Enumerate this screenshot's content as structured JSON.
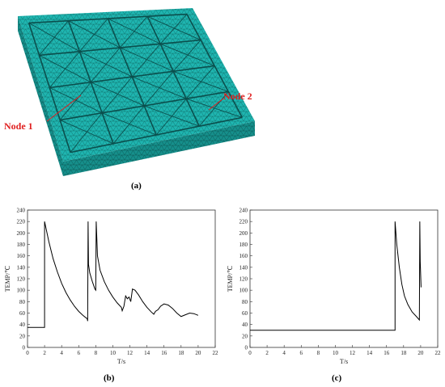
{
  "figure_a": {
    "caption": "(a)",
    "node1_label": "Node 1",
    "node2_label": "Node 2",
    "mesh_color": "#1fb5b0",
    "annotation_color": "#e02020"
  },
  "caption_b": "(b)",
  "caption_c": "(c)",
  "chart_data": [
    {
      "type": "line",
      "title": "",
      "xlabel": "T/s",
      "ylabel": "TEMP/℃",
      "xlim": [
        0,
        22
      ],
      "ylim": [
        0,
        240
      ],
      "xticks": [
        0,
        2,
        4,
        6,
        8,
        10,
        12,
        14,
        16,
        18,
        20,
        22
      ],
      "yticks": [
        0,
        20,
        40,
        60,
        80,
        100,
        120,
        140,
        160,
        180,
        200,
        220,
        240
      ],
      "grid": false,
      "series": [
        {
          "color": "#000000",
          "x": [
            0,
            2,
            2,
            2.5,
            3,
            3.5,
            4,
            4.5,
            5,
            5.5,
            6,
            6.5,
            7,
            7.05,
            7.1,
            7.15,
            7.3,
            7.6,
            7.9,
            8.0,
            8.05,
            8.2,
            8.5,
            9,
            9.5,
            10,
            10.5,
            11,
            11.1,
            11.3,
            11.5,
            11.7,
            11.9,
            12.1,
            12.3,
            12.6,
            13,
            13.5,
            14,
            14.5,
            14.8,
            15,
            15.3,
            15.6,
            16,
            16.5,
            17,
            17.5,
            18,
            18.5,
            19,
            19.5,
            20
          ],
          "y": [
            35,
            35,
            220,
            185,
            155,
            132,
            112,
            96,
            83,
            72,
            63,
            56,
            50,
            46,
            220,
            145,
            130,
            115,
            102,
            100,
            220,
            160,
            135,
            115,
            100,
            88,
            78,
            70,
            64,
            72,
            90,
            85,
            88,
            80,
            102,
            100,
            92,
            80,
            70,
            62,
            58,
            63,
            66,
            72,
            76,
            74,
            68,
            60,
            54,
            57,
            60,
            59,
            56
          ]
        }
      ]
    },
    {
      "type": "line",
      "title": "",
      "xlabel": "T/s",
      "ylabel": "TEMP/℃",
      "xlim": [
        0,
        22
      ],
      "ylim": [
        0,
        240
      ],
      "xticks": [
        0,
        2,
        4,
        6,
        8,
        10,
        12,
        14,
        16,
        18,
        20,
        22
      ],
      "yticks": [
        0,
        20,
        40,
        60,
        80,
        100,
        120,
        140,
        160,
        180,
        200,
        220,
        240
      ],
      "grid": false,
      "series": [
        {
          "color": "#000000",
          "x": [
            0,
            17,
            17,
            17.2,
            17.5,
            17.8,
            18.1,
            18.5,
            19,
            19.5,
            19.85,
            19.9,
            19.95,
            20.05
          ],
          "y": [
            30,
            30,
            220,
            180,
            140,
            110,
            90,
            75,
            62,
            54,
            48,
            220,
            150,
            105
          ]
        }
      ]
    }
  ]
}
